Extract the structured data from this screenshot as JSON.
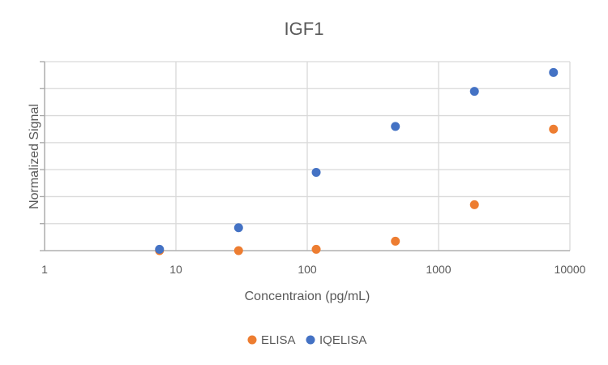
{
  "chart_data": {
    "type": "scatter",
    "title": "IGF1",
    "xlabel": "Concentraion (pg/mL)",
    "ylabel": "Normalized Signal",
    "x_scale": "log",
    "xlim": [
      1,
      10000
    ],
    "x_ticks": [
      "1",
      "10",
      "100",
      "1000",
      "10000"
    ],
    "ylim": [
      0,
      7
    ],
    "y_tick_labels_shown": false,
    "grid": true,
    "legend_position": "bottom",
    "series": [
      {
        "name": "ELISA",
        "color": "#ED7D31",
        "points": [
          {
            "x": 7.5,
            "y": 0.0
          },
          {
            "x": 30,
            "y": 0.0
          },
          {
            "x": 117,
            "y": 0.05
          },
          {
            "x": 469,
            "y": 0.35
          },
          {
            "x": 1875,
            "y": 1.7
          },
          {
            "x": 7500,
            "y": 4.5
          }
        ]
      },
      {
        "name": "IQELISA",
        "color": "#4472C4",
        "points": [
          {
            "x": 7.5,
            "y": 0.05
          },
          {
            "x": 30,
            "y": 0.85
          },
          {
            "x": 117,
            "y": 2.9
          },
          {
            "x": 469,
            "y": 4.6
          },
          {
            "x": 1875,
            "y": 5.9
          },
          {
            "x": 7500,
            "y": 6.6
          }
        ]
      }
    ]
  }
}
